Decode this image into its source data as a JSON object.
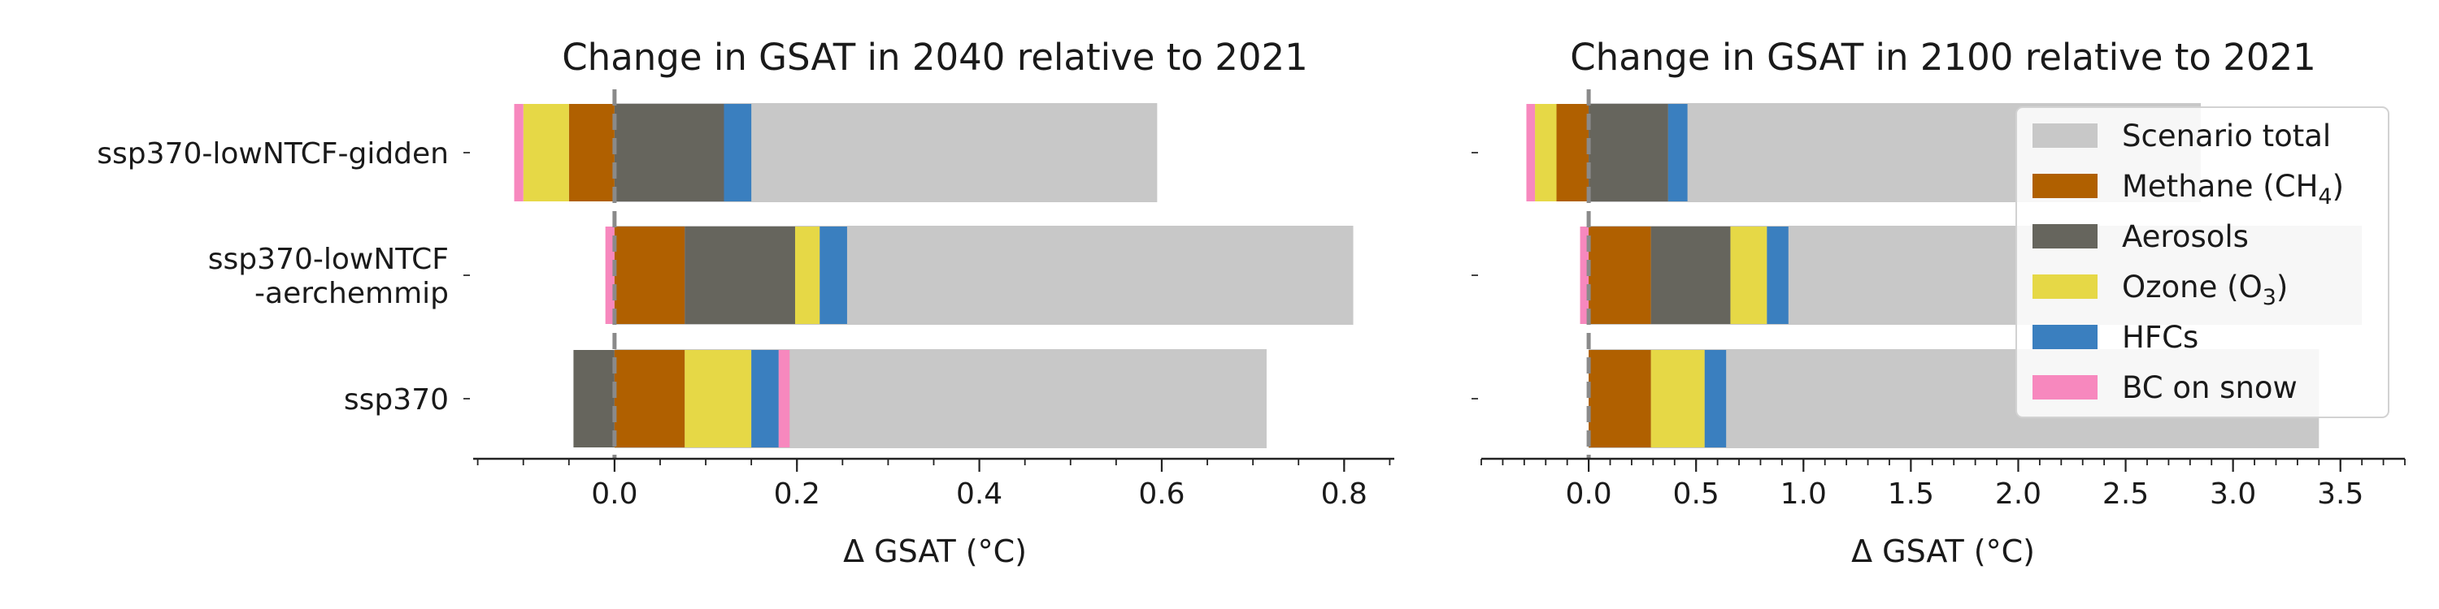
{
  "categories": [
    "ssp370-lowNTCF-gidden",
    "ssp370-lowNTCF\n-aerchemmip",
    "ssp370"
  ],
  "legend": [
    {
      "key": "total",
      "label": "Scenario total",
      "color": "#c8c8c8"
    },
    {
      "key": "methane",
      "label": "Methane (CH",
      "sub": "4",
      "suffix": ")",
      "color": "#b06000"
    },
    {
      "key": "aerosols",
      "label": "Aerosols",
      "color": "#66655d"
    },
    {
      "key": "ozone",
      "label": "Ozone (O",
      "sub": "3",
      "suffix": ")",
      "color": "#e6d846"
    },
    {
      "key": "hfcs",
      "label": "HFCs",
      "color": "#3a7fbf"
    },
    {
      "key": "bc",
      "label": "BC on snow",
      "color": "#f788be"
    }
  ],
  "chart_data": [
    {
      "type": "bar",
      "orientation": "horizontal-stacked",
      "title": "Change in GSAT in 2040 relative to 2021",
      "xlabel": "Δ GSAT (°C)",
      "xlim": [
        -0.155,
        0.855
      ],
      "xticks": [
        "0.0",
        "0.2",
        "0.4",
        "0.6",
        "0.8"
      ],
      "minor_tick_step": 0.05,
      "categories": [
        "ssp370-lowNTCF-gidden",
        "ssp370-lowNTCF-aerchemmip",
        "ssp370"
      ],
      "totals": [
        0.595,
        0.81,
        0.715
      ],
      "segments": [
        [
          {
            "key": "methane",
            "from": -0.05,
            "to": 0.0
          },
          {
            "key": "ozone",
            "from": -0.1,
            "to": -0.05
          },
          {
            "key": "bc",
            "from": -0.11,
            "to": -0.1
          },
          {
            "key": "aerosols",
            "from": 0.0,
            "to": 0.12
          },
          {
            "key": "hfcs",
            "from": 0.12,
            "to": 0.15
          }
        ],
        [
          {
            "key": "bc",
            "from": -0.01,
            "to": 0.0
          },
          {
            "key": "methane",
            "from": 0.0,
            "to": 0.077
          },
          {
            "key": "aerosols",
            "from": 0.077,
            "to": 0.198
          },
          {
            "key": "ozone",
            "from": 0.198,
            "to": 0.225
          },
          {
            "key": "hfcs",
            "from": 0.225,
            "to": 0.255
          }
        ],
        [
          {
            "key": "aerosols",
            "from": -0.045,
            "to": 0.0
          },
          {
            "key": "methane",
            "from": 0.0,
            "to": 0.077
          },
          {
            "key": "ozone",
            "from": 0.077,
            "to": 0.15
          },
          {
            "key": "hfcs",
            "from": 0.15,
            "to": 0.18
          },
          {
            "key": "bc",
            "from": 0.18,
            "to": 0.192
          }
        ]
      ]
    },
    {
      "type": "bar",
      "orientation": "horizontal-stacked",
      "title": "Change in GSAT in 2100 relative to 2021",
      "xlabel": "Δ GSAT (°C)",
      "xlim": [
        -0.5,
        3.8
      ],
      "xticks": [
        "0.0",
        "0.5",
        "1.0",
        "1.5",
        "2.0",
        "2.5",
        "3.0",
        "3.5"
      ],
      "minor_tick_step": 0.1,
      "categories": [
        "ssp370-lowNTCF-gidden",
        "ssp370-lowNTCF-aerchemmip",
        "ssp370"
      ],
      "totals": [
        2.85,
        3.6,
        3.4
      ],
      "segments": [
        [
          {
            "key": "methane",
            "from": -0.15,
            "to": 0.0
          },
          {
            "key": "ozone",
            "from": -0.25,
            "to": -0.15
          },
          {
            "key": "bc",
            "from": -0.29,
            "to": -0.25
          },
          {
            "key": "aerosols",
            "from": 0.0,
            "to": 0.37
          },
          {
            "key": "hfcs",
            "from": 0.37,
            "to": 0.46
          }
        ],
        [
          {
            "key": "bc",
            "from": -0.04,
            "to": 0.0
          },
          {
            "key": "methane",
            "from": 0.0,
            "to": 0.29
          },
          {
            "key": "aerosols",
            "from": 0.29,
            "to": 0.66
          },
          {
            "key": "ozone",
            "from": 0.66,
            "to": 0.83
          },
          {
            "key": "hfcs",
            "from": 0.83,
            "to": 0.93
          }
        ],
        [
          {
            "key": "methane",
            "from": 0.0,
            "to": 0.29
          },
          {
            "key": "ozone",
            "from": 0.29,
            "to": 0.54
          },
          {
            "key": "hfcs",
            "from": 0.54,
            "to": 0.64
          }
        ]
      ]
    }
  ]
}
